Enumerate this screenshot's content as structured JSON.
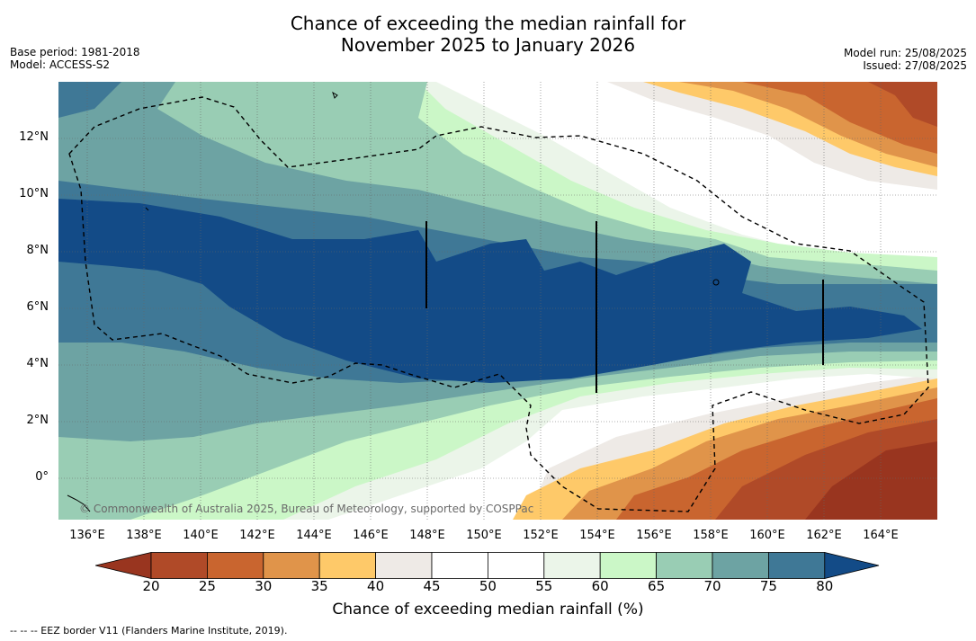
{
  "header": {
    "title_line1": "Chance of exceeding the median rainfall for",
    "title_line2": "November 2025 to January 2026",
    "base_period": "Base period: 1981-2018",
    "model": "Model: ACCESS-S2",
    "model_run": "Model run: 25/08/2025",
    "issued": "Issued: 27/08/2025"
  },
  "map": {
    "lat_labels": [
      "12°N",
      "10°N",
      "8°N",
      "6°N",
      "4°N",
      "2°N",
      "0°"
    ],
    "lon_labels": [
      "136°E",
      "138°E",
      "140°E",
      "142°E",
      "144°E",
      "146°E",
      "148°E",
      "150°E",
      "152°E",
      "154°E",
      "156°E",
      "158°E",
      "160°E",
      "162°E",
      "164°E"
    ],
    "credit": "© Commonwealth of Australia 2025, Bureau of Meteorology, supported by COSPPac"
  },
  "colorbar": {
    "title": "Chance of exceeding median rainfall (%)",
    "ticks": [
      "20",
      "25",
      "30",
      "35",
      "40",
      "45",
      "50",
      "55",
      "60",
      "65",
      "70",
      "75",
      "80"
    ],
    "under_color": "#99351f",
    "over_color": "#134b87",
    "colors": [
      "#b04a28",
      "#c9652f",
      "#e0944a",
      "#fec969",
      "#eeeae6",
      "#ffffff",
      "#ffffff",
      "#ebf5e9",
      "#cbf7c7",
      "#99cdb4",
      "#6da3a3",
      "#3f7896"
    ]
  },
  "footer": {
    "eez_note": "--  --  -- EEZ border V11 (Flanders Marine Institute, 2019)."
  }
}
